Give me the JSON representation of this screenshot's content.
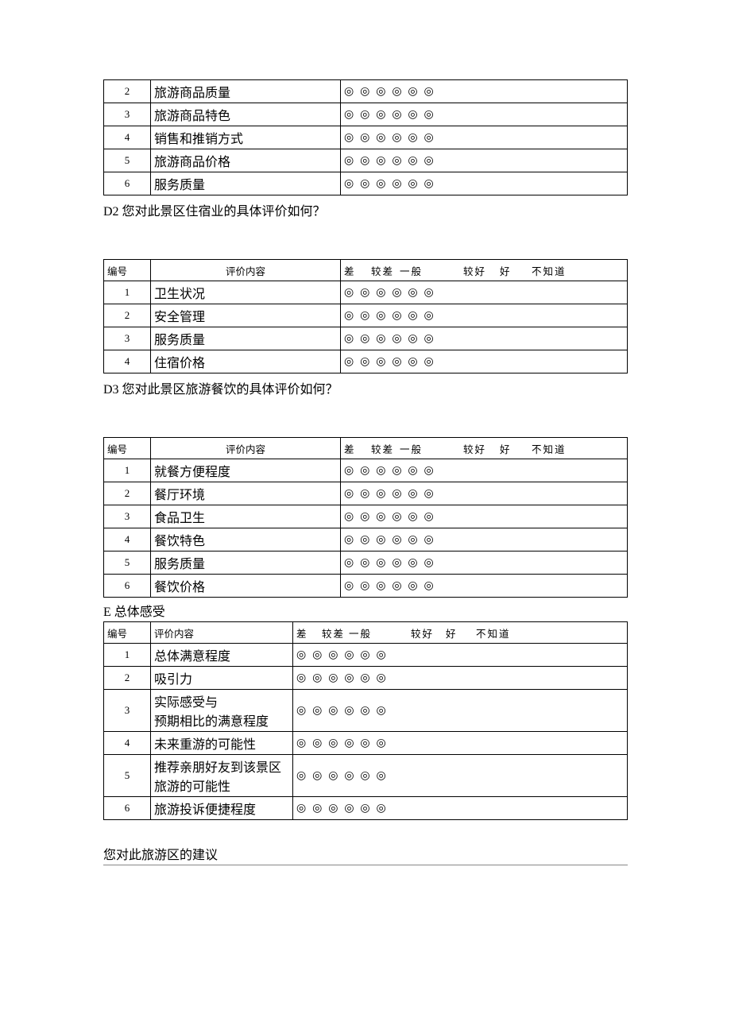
{
  "rating_symbol": "◎",
  "num_ratings": 6,
  "header_labels": {
    "num": "编号",
    "content": "评价内容",
    "cols": [
      "差",
      "较差",
      "一般",
      "较好",
      "好",
      "不知道"
    ]
  },
  "section_d1": {
    "rows": [
      {
        "n": "2",
        "label": "旅游商品质量"
      },
      {
        "n": "3",
        "label": "旅游商品特色"
      },
      {
        "n": "4",
        "label": "销售和推销方式"
      },
      {
        "n": "5",
        "label": "旅游商品价格"
      },
      {
        "n": "6",
        "label": "服务质量"
      }
    ]
  },
  "q_d2": "D2 您对此景区住宿业的具体评价如何？",
  "section_d2": {
    "rows": [
      {
        "n": "1",
        "label": "卫生状况"
      },
      {
        "n": "2",
        "label": "安全管理"
      },
      {
        "n": "3",
        "label": "服务质量"
      },
      {
        "n": "4",
        "label": "住宿价格"
      }
    ]
  },
  "q_d3": "D3 您对此景区旅游餐饮的具体评价如何？",
  "section_d3": {
    "rows": [
      {
        "n": "1",
        "label": "就餐方便程度"
      },
      {
        "n": "2",
        "label": "餐厅环境"
      },
      {
        "n": "3",
        "label": "食品卫生"
      },
      {
        "n": "4",
        "label": "餐饮特色"
      },
      {
        "n": "5",
        "label": "服务质量"
      },
      {
        "n": "6",
        "label": "餐饮价格"
      }
    ]
  },
  "section_e_title": "E 总体感受",
  "section_e": {
    "rows": [
      {
        "n": "1",
        "label": "总体满意程度"
      },
      {
        "n": "2",
        "label": "吸引力"
      },
      {
        "n": "3",
        "label": "实际感受与<br>预期相比的满意程度"
      },
      {
        "n": "4",
        "label": "未来重游的可能性"
      },
      {
        "n": "5",
        "label": "推荐亲朋好友到该景区旅游的可能性"
      },
      {
        "n": "6",
        "label": "旅游投诉便捷程度"
      }
    ]
  },
  "footer": "您对此旅游区的建议"
}
